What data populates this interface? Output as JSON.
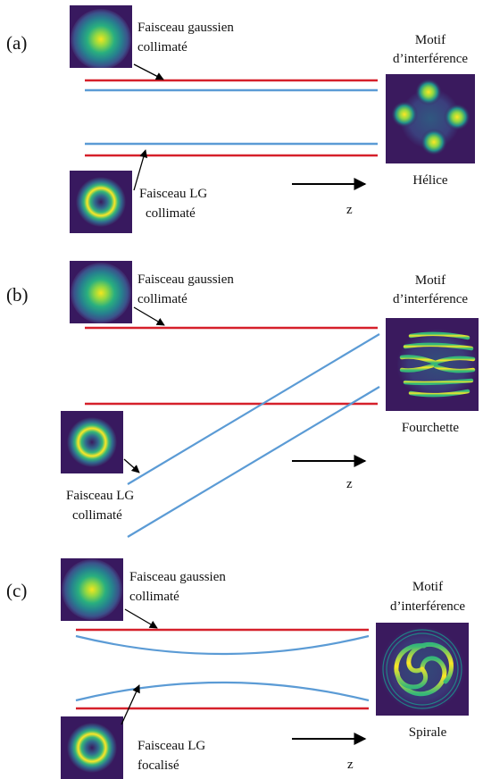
{
  "colors": {
    "gaussian_beam_line": "#d6202a",
    "lg_beam_line": "#5b9bd5",
    "intensity_background": "#38195f",
    "intensity_peak": "#fde725"
  },
  "panels": [
    {
      "label": "(a)",
      "gaussian_beam": [
        "Faisceau gaussien",
        "collimaté"
      ],
      "lg_beam": [
        "Faisceau LG",
        "collimaté"
      ],
      "pattern_title": [
        "Motif",
        "d’interférence"
      ],
      "pattern_name": "Hélice",
      "axis_label": "z"
    },
    {
      "label": "(b)",
      "gaussian_beam": [
        "Faisceau gaussien",
        "collimaté"
      ],
      "lg_beam": [
        "Faisceau LG",
        "collimaté"
      ],
      "pattern_title": [
        "Motif",
        "d’interférence"
      ],
      "pattern_name": "Fourchette",
      "axis_label": "z"
    },
    {
      "label": "(c)",
      "gaussian_beam": [
        "Faisceau gaussien",
        "collimaté"
      ],
      "lg_beam": [
        "Faisceau LG",
        "focalisé"
      ],
      "pattern_title": [
        "Motif",
        "d’interférence"
      ],
      "pattern_name": "Spirale",
      "axis_label": "z"
    }
  ]
}
